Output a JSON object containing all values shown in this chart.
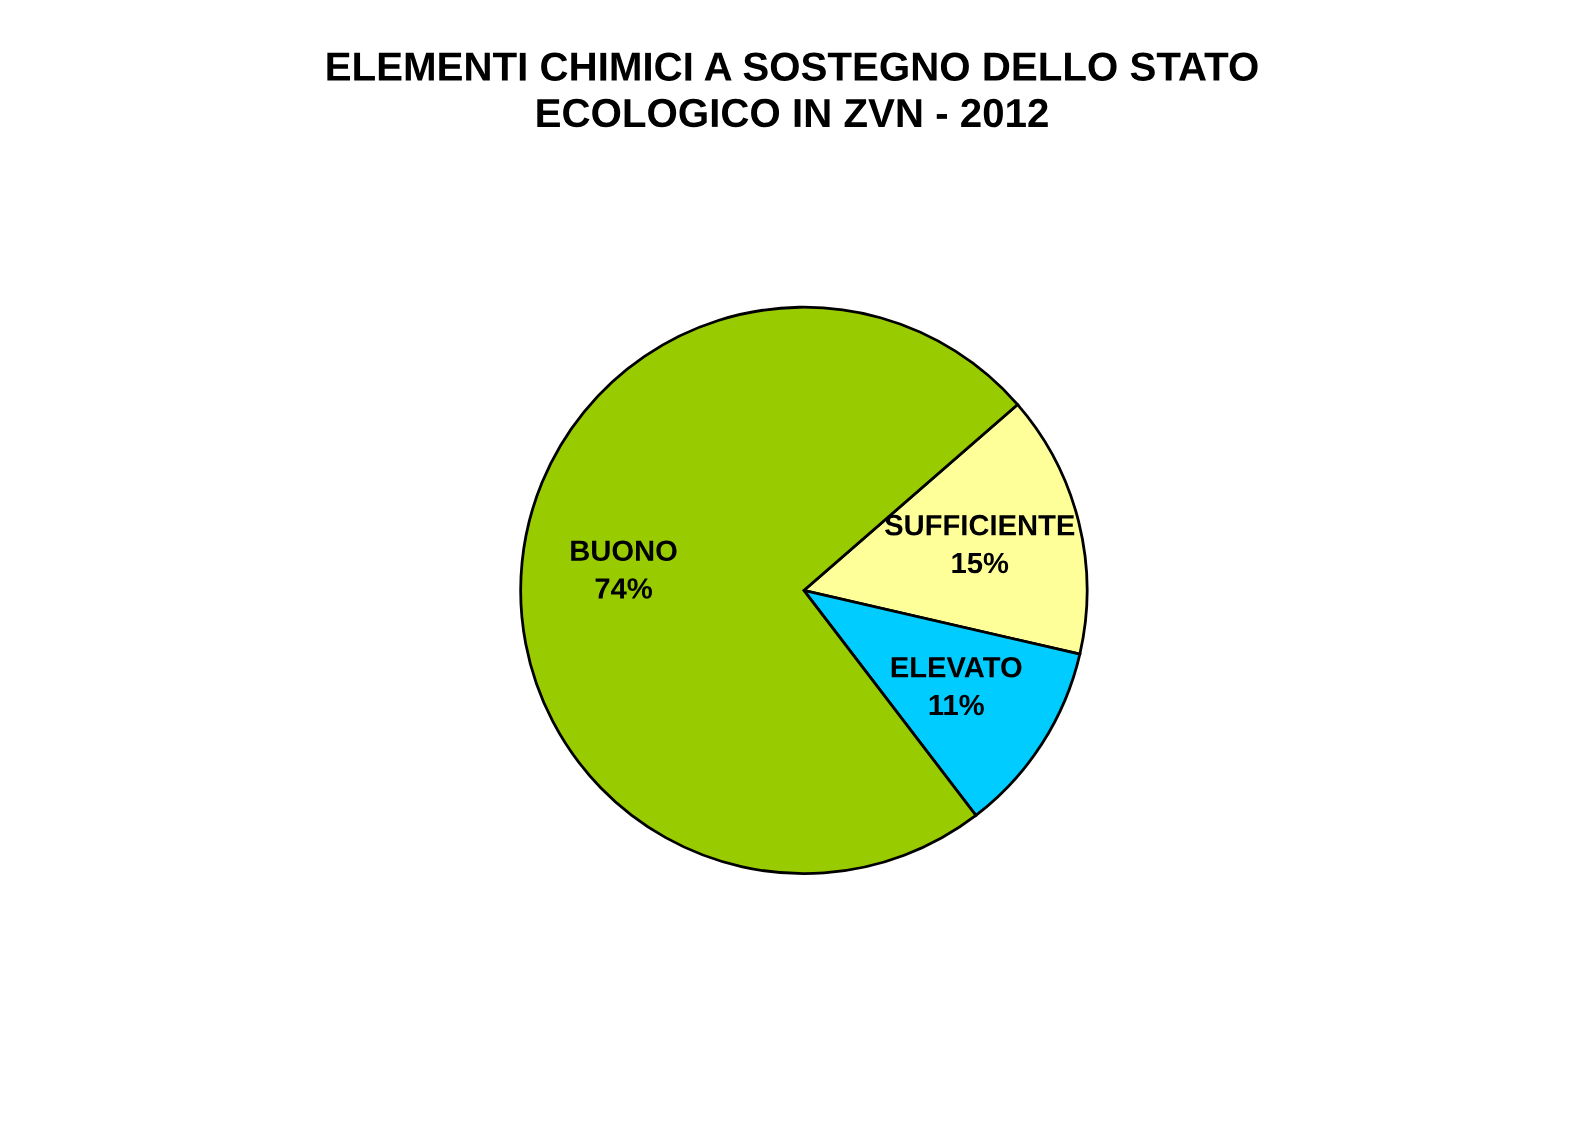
{
  "chart_data": {
    "type": "pie",
    "title": "ELEMENTI CHIMICI A SOSTEGNO DELLO STATO\nECOLOGICO IN ZVN - 2012",
    "categories": [
      "SUFFICIENTE",
      "ELEVATO",
      "BUONO"
    ],
    "values": [
      15,
      11,
      74
    ],
    "value_labels": [
      "15%",
      "11%",
      "74%"
    ],
    "colors": [
      "#ffff99",
      "#00ccff",
      "#99cc00"
    ],
    "legend": false
  }
}
